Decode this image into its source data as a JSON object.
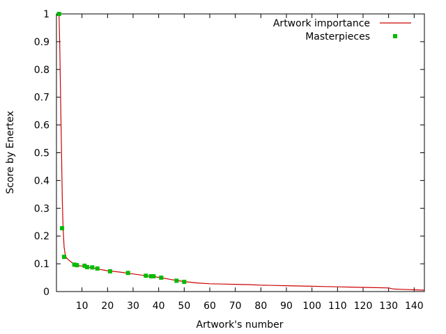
{
  "chart_data": {
    "type": "line",
    "title": "",
    "xlabel": "Artwork's number",
    "ylabel": "Score by Enertex",
    "xlim": [
      0,
      144
    ],
    "ylim": [
      0,
      1
    ],
    "xticks": [
      10,
      20,
      30,
      40,
      50,
      60,
      70,
      80,
      90,
      100,
      110,
      120,
      130,
      140
    ],
    "yticks": [
      0,
      0.1,
      0.2,
      0.3,
      0.4,
      0.5,
      0.6,
      0.7,
      0.8,
      0.9,
      1
    ],
    "grid": false,
    "legend": "top-right",
    "series": [
      {
        "name": "Artwork importance",
        "style": "line",
        "color": "#cc0000",
        "x": [
          1,
          1.3,
          1.6,
          2,
          2.3,
          2.6,
          3,
          3.5,
          4,
          5,
          6,
          7,
          8,
          9,
          10,
          11,
          12,
          14,
          16,
          18,
          20,
          22,
          25,
          28,
          32,
          35,
          38,
          41,
          45,
          47,
          50,
          55,
          60,
          65,
          70,
          75,
          80,
          85,
          90,
          95,
          100,
          105,
          110,
          115,
          120,
          125,
          130,
          132,
          135,
          138,
          141,
          144
        ],
        "y": [
          1.0,
          0.88,
          0.7,
          0.5,
          0.33,
          0.23,
          0.16,
          0.13,
          0.12,
          0.112,
          0.105,
          0.098,
          0.095,
          0.093,
          0.092,
          0.09,
          0.088,
          0.086,
          0.082,
          0.078,
          0.075,
          0.073,
          0.07,
          0.066,
          0.061,
          0.057,
          0.054,
          0.05,
          0.043,
          0.04,
          0.036,
          0.031,
          0.028,
          0.027,
          0.026,
          0.025,
          0.023,
          0.022,
          0.021,
          0.02,
          0.019,
          0.018,
          0.017,
          0.016,
          0.015,
          0.014,
          0.013,
          0.009,
          0.008,
          0.007,
          0.006,
          0.005
        ]
      },
      {
        "name": "Masterpieces",
        "style": "points",
        "color": "#00bb00",
        "x": [
          1,
          2.2,
          3,
          7,
          8,
          11,
          12,
          14,
          16,
          21,
          28,
          35,
          37,
          38,
          41,
          47,
          50
        ],
        "y": [
          1.0,
          0.228,
          0.125,
          0.097,
          0.095,
          0.093,
          0.088,
          0.087,
          0.083,
          0.073,
          0.067,
          0.057,
          0.055,
          0.055,
          0.05,
          0.039,
          0.035
        ]
      }
    ]
  }
}
